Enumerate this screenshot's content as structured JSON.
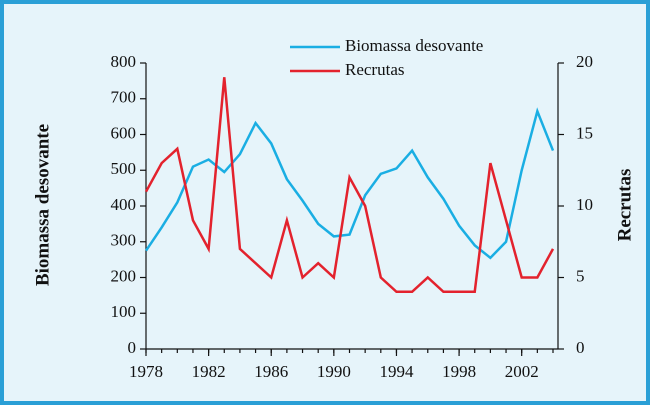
{
  "chart_data": {
    "type": "line",
    "x": [
      1978,
      1979,
      1980,
      1981,
      1982,
      1983,
      1984,
      1985,
      1986,
      1987,
      1988,
      1989,
      1990,
      1991,
      1992,
      1993,
      1994,
      1995,
      1996,
      1997,
      1998,
      1999,
      2000,
      2001,
      2002,
      2003,
      2004
    ],
    "series": [
      {
        "name": "Biomassa desovante",
        "color": "#1aaee3",
        "values": [
          275,
          340,
          410,
          510,
          530,
          495,
          545,
          632,
          575,
          475,
          415,
          350,
          315,
          320,
          430,
          490,
          505,
          555,
          480,
          420,
          345,
          290,
          255,
          300,
          500,
          665,
          555
        ]
      },
      {
        "name": "Recrutas",
        "color": "#e3222d",
        "axis": "y2",
        "values": [
          11,
          13,
          14,
          9,
          7,
          19,
          7,
          6,
          5,
          9,
          5,
          6,
          5,
          12,
          10,
          5,
          4,
          4,
          5,
          4,
          4,
          4,
          13,
          9,
          5,
          5,
          7
        ]
      }
    ],
    "ylabel": "Biomassa desovante",
    "y2label": "Recrutas",
    "xlim": [
      1978,
      2004
    ],
    "xticks": [
      1978,
      1982,
      1986,
      1990,
      1994,
      1998,
      2002
    ],
    "ylim": [
      0,
      800
    ],
    "yticks": [
      0,
      100,
      200,
      300,
      400,
      500,
      600,
      700,
      800
    ],
    "y2lim": [
      0,
      20
    ],
    "y2ticks": [
      0,
      5,
      10,
      15,
      20
    ]
  }
}
